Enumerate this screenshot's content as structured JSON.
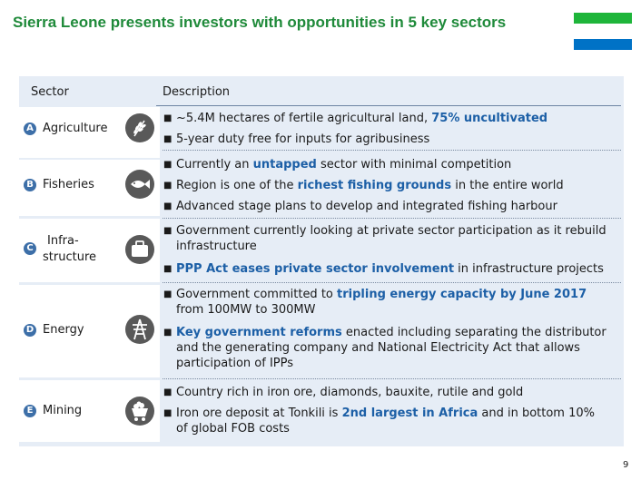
{
  "title": "Sierra Leone presents investors with opportunities in 5 key sectors",
  "flag_colors": {
    "green": "#1eb53a",
    "white": "#ffffff",
    "blue": "#0072c6"
  },
  "table": {
    "col_sector": "Sector",
    "col_description": "Description"
  },
  "sectors": [
    {
      "letter": "A",
      "label": "Agriculture",
      "icon": "wheat-icon",
      "bullets": [
        [
          {
            "t": "~5.4M hectares of fertile agricultural land, "
          },
          {
            "t": "75% uncultivated",
            "h": true
          }
        ],
        [
          {
            "t": "5-year duty free for inputs for agribusiness"
          }
        ]
      ]
    },
    {
      "letter": "B",
      "label": "Fisheries",
      "icon": "fish-icon",
      "bullets": [
        [
          {
            "t": "Currently an "
          },
          {
            "t": "untapped",
            "h": true
          },
          {
            "t": " sector with minimal competition"
          }
        ],
        [
          {
            "t": "Region is one of the "
          },
          {
            "t": "richest fishing grounds",
            "h": true
          },
          {
            "t": " in the entire world"
          }
        ],
        [
          {
            "t": "Advanced stage plans to develop and integrated fishing harbour"
          }
        ]
      ]
    },
    {
      "letter": "C",
      "label_line1": "Infra-",
      "label_line2": "structure",
      "icon": "briefcase-icon",
      "bullets": [
        [
          {
            "t": "Government currently looking at private sector participation as it rebuild infrastructure"
          }
        ],
        [
          {
            "t": "PPP Act eases private sector involvement",
            "h": true
          },
          {
            "t": " in infrastructure projects"
          }
        ]
      ]
    },
    {
      "letter": "D",
      "label": "Energy",
      "icon": "power-pylon-icon",
      "bullets": [
        [
          {
            "t": "Government committed to "
          },
          {
            "t": "tripling energy capacity by June 2017",
            "h": true
          },
          {
            "t": " from 100MW to 300MW"
          }
        ],
        [
          {
            "t": "Key government reforms",
            "h": true
          },
          {
            "t": " enacted including separating the distributor and the generating company and National Electricity Act that allows participation of IPPs"
          }
        ]
      ]
    },
    {
      "letter": "E",
      "label": "Mining",
      "icon": "ore-cart-icon",
      "bullets": [
        [
          {
            "t": "Country rich in iron ore, diamonds, bauxite, rutile and gold"
          }
        ],
        [
          {
            "t": "Iron ore deposit at Tonkili is "
          },
          {
            "t": "2nd largest in Africa",
            "h": true
          },
          {
            "t": " and in bottom 10% of global FOB costs"
          }
        ]
      ]
    }
  ],
  "page_number": "9"
}
